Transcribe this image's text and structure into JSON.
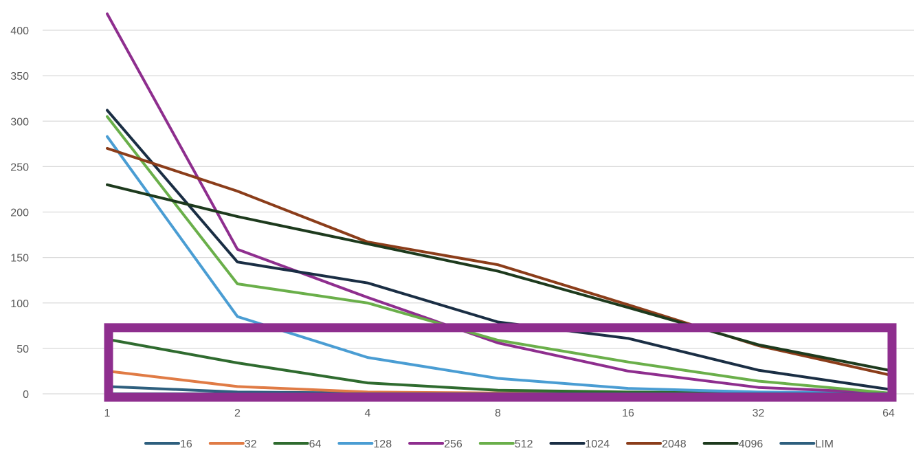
{
  "chart_data": {
    "type": "line",
    "title": "",
    "xlabel": "",
    "ylabel": "",
    "categories": [
      "1",
      "2",
      "4",
      "8",
      "16",
      "32",
      "64"
    ],
    "ylim": [
      0,
      400
    ],
    "yticks": [
      0,
      50,
      100,
      150,
      200,
      250,
      300,
      350,
      400
    ],
    "grid": true,
    "legend_position": "bottom",
    "series": [
      {
        "name": "16",
        "color": "#2E5F7E",
        "values": [
          8,
          2,
          1,
          0.5,
          0.3,
          0.2,
          0.1
        ]
      },
      {
        "name": "32",
        "color": "#E07B45",
        "values": [
          25,
          8,
          2,
          1,
          0.5,
          0.3,
          0.2
        ]
      },
      {
        "name": "64",
        "color": "#2F6B2F",
        "values": [
          60,
          34,
          12,
          4,
          2,
          1,
          0.5
        ]
      },
      {
        "name": "128",
        "color": "#4A9DD3",
        "values": [
          283,
          85,
          40,
          17,
          6,
          2,
          1
        ]
      },
      {
        "name": "256",
        "color": "#8E2E8E",
        "values": [
          418,
          159,
          106,
          56,
          25,
          7,
          1
        ]
      },
      {
        "name": "512",
        "color": "#6AAF4A",
        "values": [
          305,
          121,
          100,
          59,
          35,
          14,
          1
        ]
      },
      {
        "name": "1024",
        "color": "#1A2E44",
        "values": [
          312,
          145,
          122,
          79,
          61,
          26,
          5
        ]
      },
      {
        "name": "2048",
        "color": "#8B3D1A",
        "values": [
          270,
          223,
          167,
          142,
          98,
          53,
          21
        ]
      },
      {
        "name": "4096",
        "color": "#1D3A1D",
        "values": [
          230,
          195,
          165,
          135,
          95,
          54,
          26
        ]
      },
      {
        "name": "LIM",
        "color": "#2E5F7E",
        "values": [
          0,
          0,
          0,
          0,
          0,
          0,
          0
        ]
      }
    ],
    "annotations": [
      {
        "type": "highlight-box",
        "color": "#8E2E8E",
        "y_range": [
          0,
          75
        ],
        "x_range": [
          "1",
          "64"
        ]
      }
    ]
  }
}
